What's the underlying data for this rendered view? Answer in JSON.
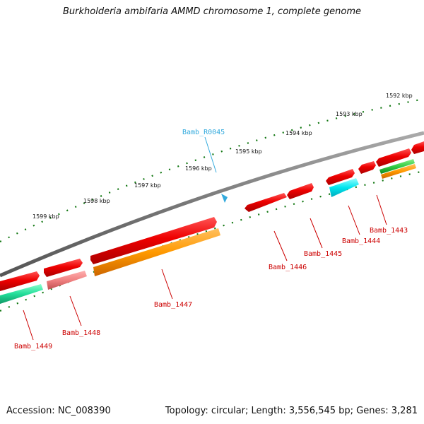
{
  "title": "Burkholderia ambifaria AMMD chromosome 1, complete genome",
  "footer": {
    "accession": "Accession: NC_008390",
    "summary": "Topology: circular; Length: 3,556,545 bp; Genes: 3,281"
  },
  "colors": {
    "backbone": "#777777",
    "cds": "#ee0000",
    "cds_light": "#f08080",
    "orange": "#ff9900",
    "green": "#33cc44",
    "teal": "#22dd99",
    "cyan": "#00e5ee",
    "rna": "#33aadd",
    "tick": "#117711",
    "callout_gene": "#cc0000"
  },
  "ruler": {
    "labels": [
      "1599 kbp",
      "1598 kbp",
      "1597 kbp",
      "1596 kbp",
      "1595 kbp",
      "1594 kbp",
      "1593 kbp",
      "1592 kbp"
    ]
  },
  "genes": [
    {
      "label": "Bamb_R0045",
      "type": "rna"
    },
    {
      "label": "Bamb_1443",
      "type": "cds"
    },
    {
      "label": "Bamb_1444",
      "type": "cds"
    },
    {
      "label": "Bamb_1445",
      "type": "cds"
    },
    {
      "label": "Bamb_1446",
      "type": "cds"
    },
    {
      "label": "Bamb_1447",
      "type": "cds"
    },
    {
      "label": "Bamb_1448",
      "type": "cds"
    },
    {
      "label": "Bamb_1449",
      "type": "cds"
    }
  ]
}
